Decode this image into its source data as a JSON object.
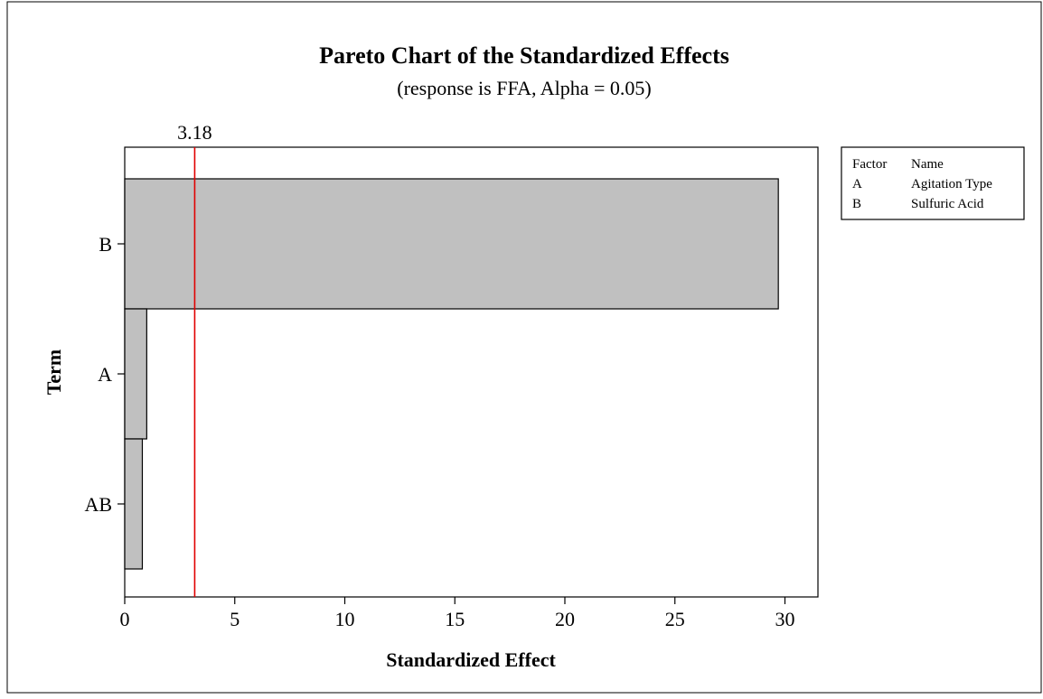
{
  "chart_data": {
    "type": "bar",
    "orientation": "horizontal",
    "title": "Pareto Chart of the Standardized Effects",
    "subtitle": "(response is FFA, Alpha = 0.05)",
    "xlabel": "Standardized Effect",
    "ylabel": "Term",
    "categories": [
      "B",
      "A",
      "AB"
    ],
    "values": [
      29.7,
      1.0,
      0.8
    ],
    "xlim": [
      0,
      31.5
    ],
    "xticks": [
      0,
      5,
      10,
      15,
      20,
      25,
      30
    ],
    "reference_line": {
      "value": 3.18,
      "label": "3.18",
      "color": "#e00000"
    },
    "bar_color": "#c0c0c0",
    "grid": false,
    "legend": {
      "placement": "top-right",
      "header": [
        "Factor",
        "Name"
      ],
      "entries": [
        {
          "factor": "A",
          "name": "Agitation Type"
        },
        {
          "factor": "B",
          "name": "Sulfuric Acid"
        }
      ]
    }
  }
}
